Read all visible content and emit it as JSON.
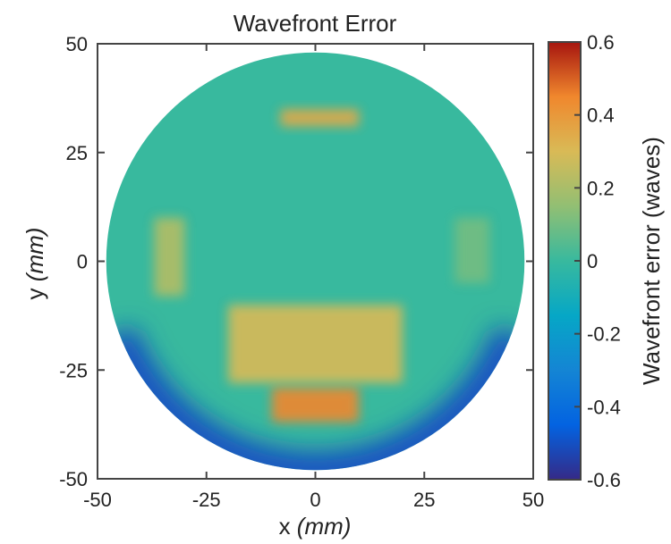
{
  "chart_data": {
    "type": "heatmap",
    "title": "Wavefront Error",
    "xlabel": {
      "text": "x",
      "unit": "(mm)"
    },
    "ylabel": {
      "text": "y",
      "unit": "(mm)"
    },
    "colorbar_label": "Wavefront error (waves)",
    "xlim": [
      -50,
      50
    ],
    "ylim": [
      -50,
      50
    ],
    "clim": [
      -0.6,
      0.6
    ],
    "x_ticks": [
      "-50",
      "-25",
      "0",
      "25",
      "50"
    ],
    "y_ticks": [
      "50",
      "25",
      "0",
      "-25",
      "-50"
    ],
    "colorbar_ticks": [
      "0.6",
      "0.4",
      "0.2",
      "0",
      "-0.2",
      "-0.4",
      "-0.6"
    ],
    "colormap": "parula-like (dark blue to dark red)",
    "aperture": {
      "shape": "circle",
      "center": [
        0,
        0
      ],
      "radius_mm": 48
    },
    "baseline_value": 0.0,
    "features": [
      {
        "name": "bottom-hotspot",
        "x": [
          -10,
          10
        ],
        "y": [
          -37,
          -29
        ],
        "value": 0.45
      },
      {
        "name": "lower-band",
        "x": [
          -20,
          20
        ],
        "y": [
          -28,
          -10
        ],
        "value": 0.3
      },
      {
        "name": "top-hotspot",
        "x": [
          -8,
          10
        ],
        "y": [
          31,
          35
        ],
        "value": 0.35
      },
      {
        "name": "left-patch",
        "x": [
          -37,
          -30
        ],
        "y": [
          -8,
          10
        ],
        "value": 0.22
      },
      {
        "name": "right-patch",
        "x": [
          32,
          40
        ],
        "y": [
          -5,
          10
        ],
        "value": 0.1
      },
      {
        "name": "lower-rim",
        "angle_deg": [
          200,
          340
        ],
        "value": -0.5
      }
    ]
  }
}
